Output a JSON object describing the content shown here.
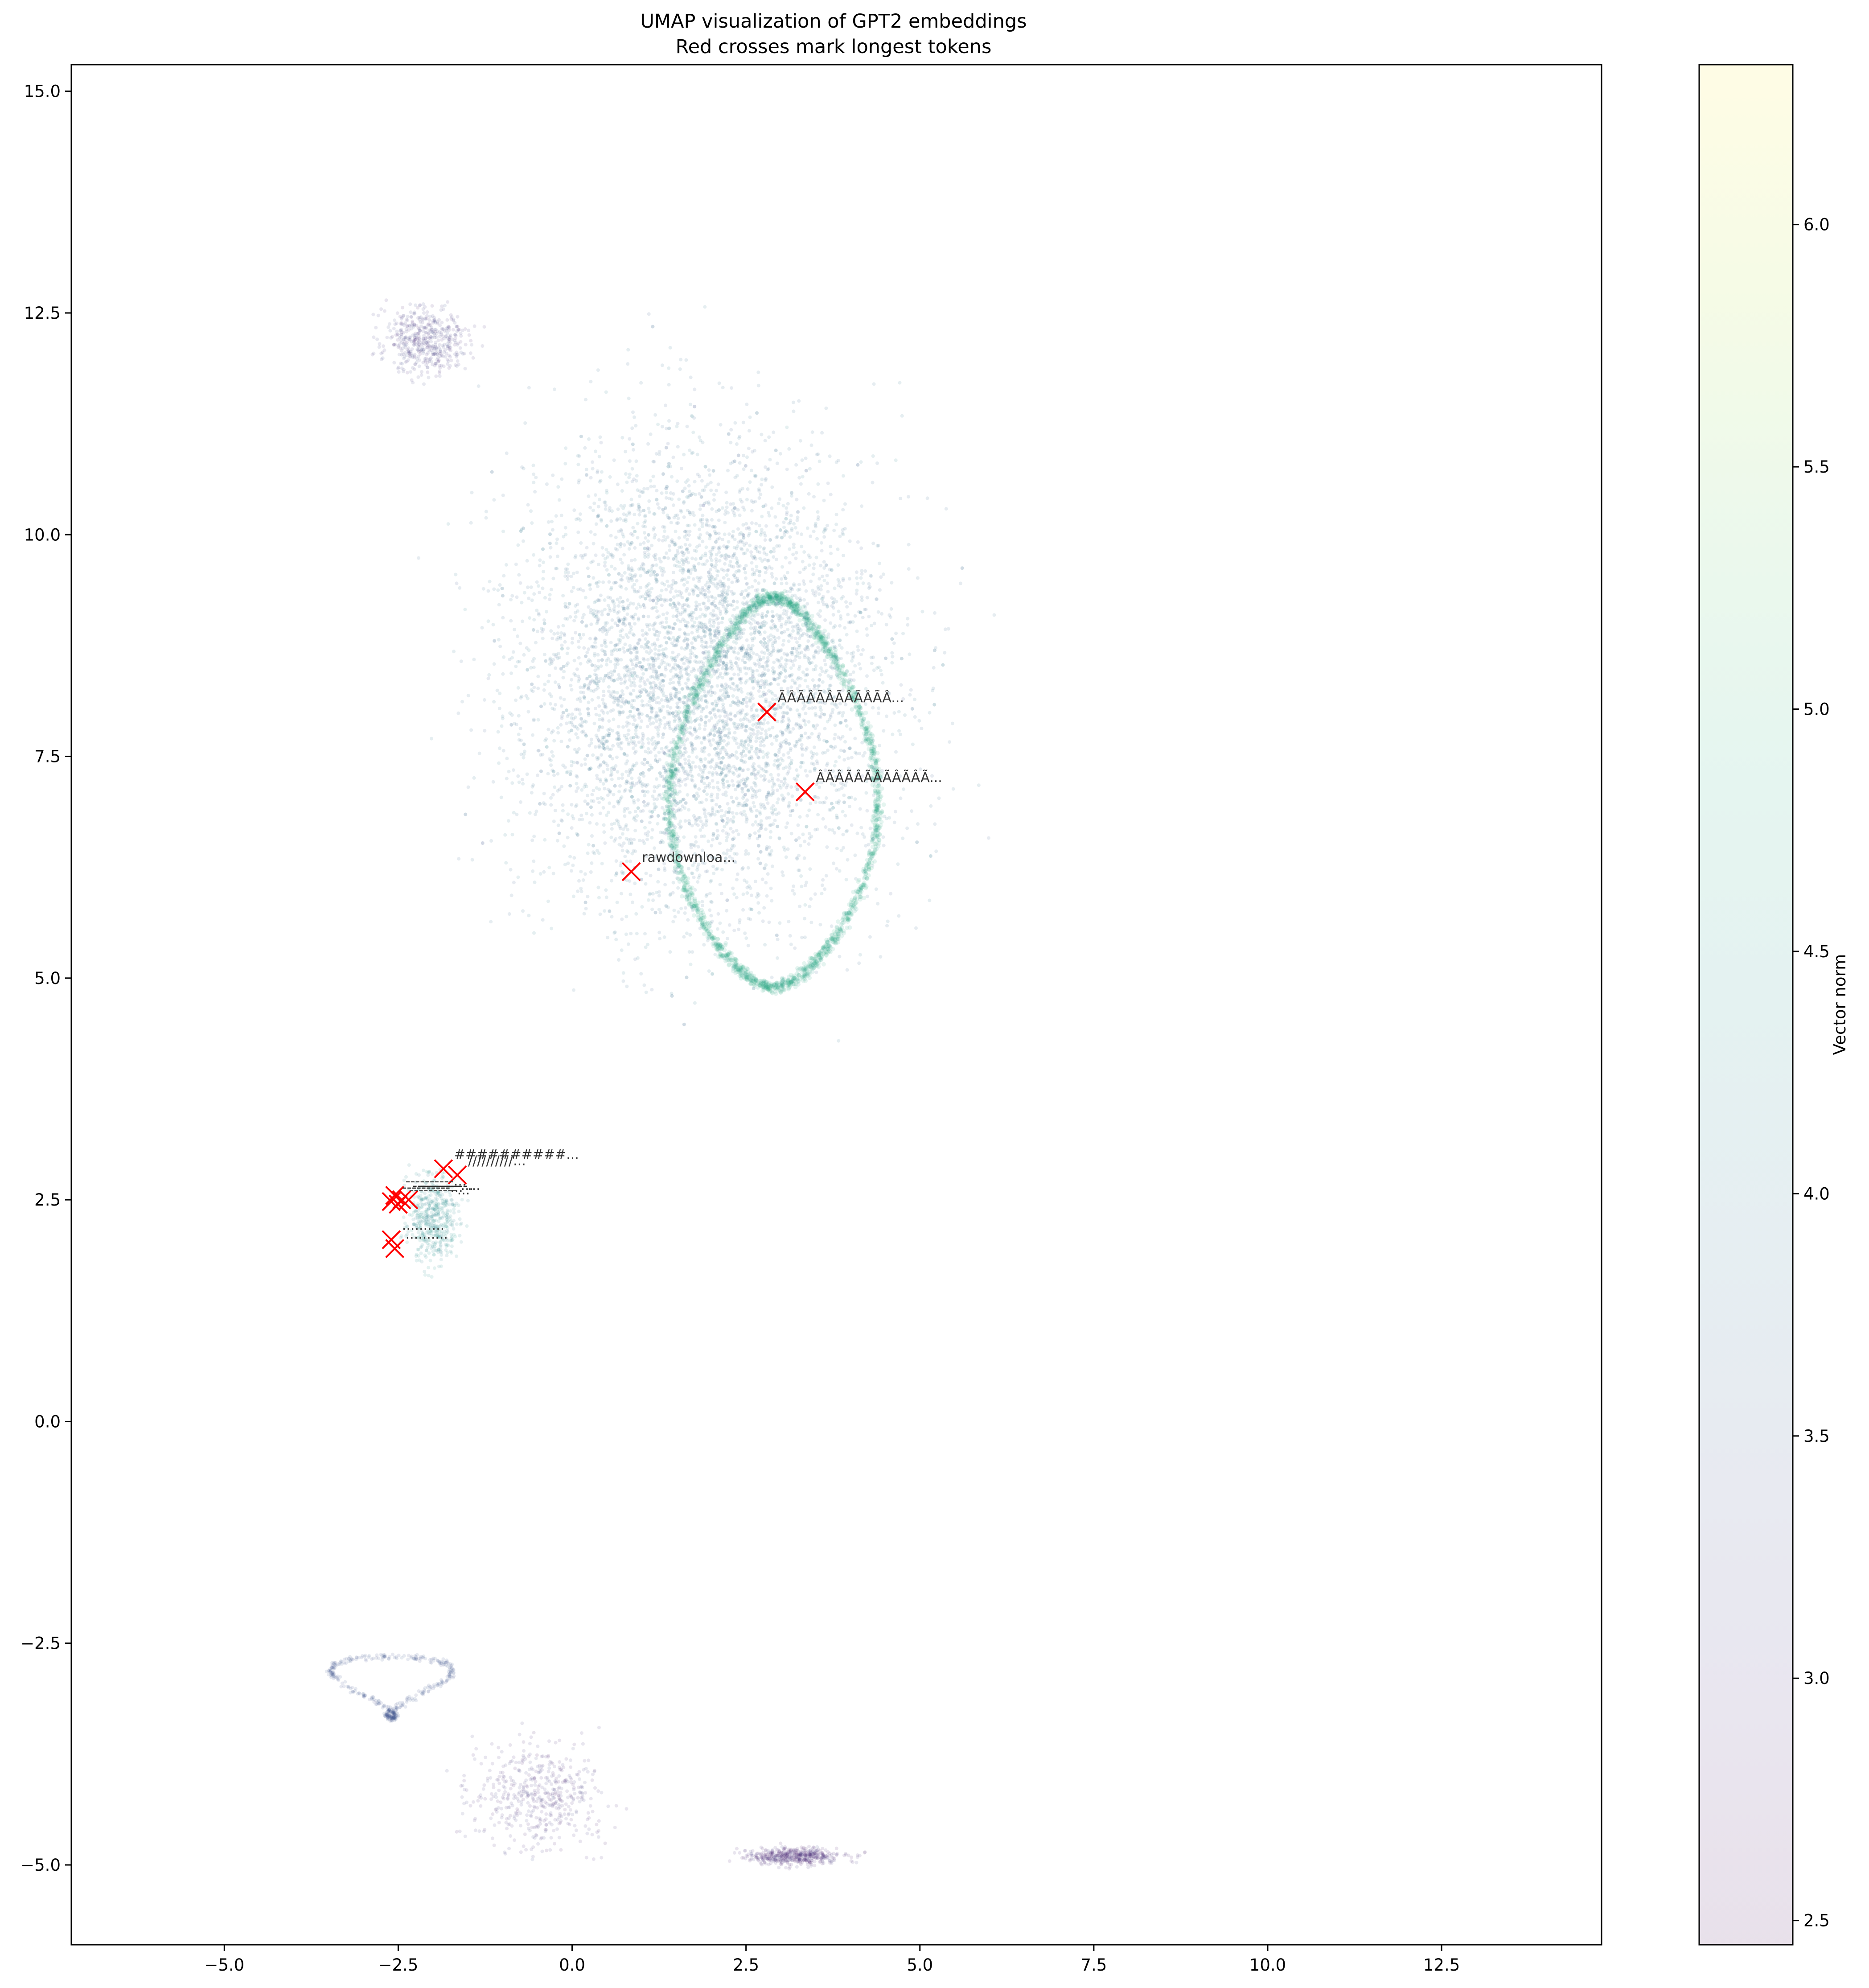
{
  "chart_data": {
    "type": "scatter",
    "title": "UMAP visualization of GPT2 embeddings",
    "subtitle": "Red crosses mark longest tokens",
    "xlabel": "",
    "ylabel": "",
    "xlim": [
      -7.2,
      14.8
    ],
    "ylim": [
      -5.9,
      15.3
    ],
    "x_ticks": [
      -5.0,
      -2.5,
      0.0,
      2.5,
      5.0,
      7.5,
      10.0,
      12.5
    ],
    "y_ticks": [
      -5.0,
      -2.5,
      0.0,
      2.5,
      5.0,
      7.5,
      10.0,
      12.5,
      15.0
    ],
    "grid": false,
    "colormap": "viridis",
    "point_alpha": 0.12,
    "colorbar": {
      "label": "Vector norm",
      "range": [
        2.45,
        6.33
      ],
      "ticks": [
        2.5,
        3.0,
        3.5,
        4.0,
        4.5,
        5.0,
        5.5,
        6.0
      ]
    },
    "point_clusters": [
      {
        "region": "main cloud",
        "center": [
          1.9,
          8.4
        ],
        "spread": [
          2.2,
          2.2
        ],
        "norm_mean": 3.8
      },
      {
        "region": "upper-left dense patch",
        "center": [
          -2.1,
          12.2
        ],
        "spread": [
          0.5,
          0.3
        ],
        "norm_mean": 3.1
      },
      {
        "region": "green ring",
        "shape": "ring",
        "center": [
          2.9,
          7.1
        ],
        "norm_mean": 4.75
      },
      {
        "region": "left tail",
        "center": [
          -2.0,
          2.3
        ],
        "spread": [
          0.3,
          0.4
        ],
        "norm_mean": 4.3
      },
      {
        "region": "lower loop",
        "shape": "loop",
        "center": [
          -2.6,
          -3.0
        ],
        "norm_mean": 3.4
      },
      {
        "region": "lower-center blobs",
        "center": [
          -0.5,
          -4.2
        ],
        "spread": [
          0.8,
          0.5
        ],
        "norm_mean": 3.0
      },
      {
        "region": "lower-right strand",
        "center": [
          3.2,
          -4.9
        ],
        "spread": [
          0.6,
          0.08
        ],
        "norm_mean": 2.9
      }
    ],
    "longest_tokens": {
      "marker": "x",
      "color": "#ff0000",
      "points": [
        {
          "x": 2.8,
          "y": 8.0,
          "label": "ÃÂÃÂÃÂÃÂÃÂÃÂ..."
        },
        {
          "x": 3.35,
          "y": 7.1,
          "label": "ÂÃÂÃÂÃÂÃÂÃÂÃ..."
        },
        {
          "x": 0.85,
          "y": 6.2,
          "label": "rawdownloa..."
        },
        {
          "x": -1.85,
          "y": 2.85,
          "label": "##########..."
        },
        {
          "x": -1.65,
          "y": 2.78,
          "label": "//////////..."
        },
        {
          "x": -2.55,
          "y": 2.55,
          "label": "----------..."
        },
        {
          "x": -2.45,
          "y": 2.5,
          "label": "----------..."
        },
        {
          "x": -2.6,
          "y": 2.48,
          "label": "----------..."
        },
        {
          "x": -2.35,
          "y": 2.5,
          "label": "----------..."
        },
        {
          "x": -2.5,
          "y": 2.45,
          "label": "----------..."
        },
        {
          "x": -2.6,
          "y": 2.05,
          "label": ".........."
        },
        {
          "x": -2.55,
          "y": 1.95,
          "label": ".........."
        }
      ]
    }
  }
}
